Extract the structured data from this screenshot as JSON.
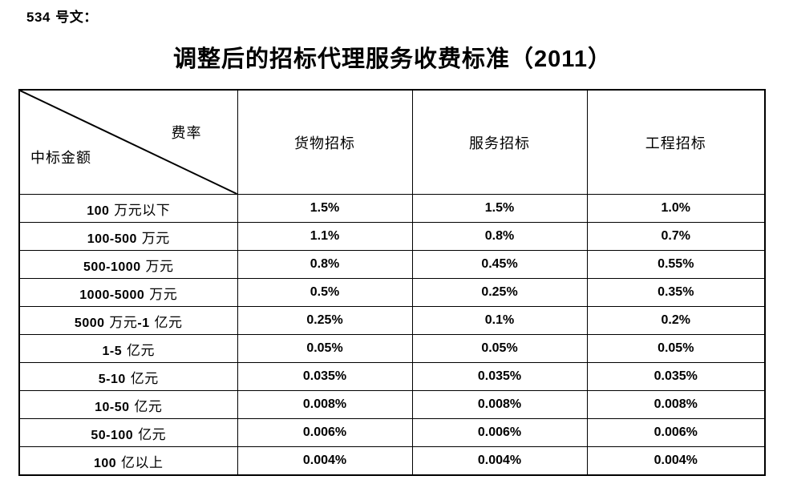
{
  "doc": {
    "doc_number": "534 号文：",
    "title": "调整后的招标代理服务收费标准（2011）"
  },
  "table": {
    "corner": {
      "top_right_label": "费率",
      "bottom_left_label": "中标金额"
    },
    "columns": [
      "货物招标",
      "服务招标",
      "工程招标"
    ],
    "rows": [
      {
        "label": "100 万元以下",
        "values": [
          "1.5%",
          "1.5%",
          "1.0%"
        ]
      },
      {
        "label": "100-500 万元",
        "values": [
          "1.1%",
          "0.8%",
          "0.7%"
        ]
      },
      {
        "label": "500-1000 万元",
        "values": [
          "0.8%",
          "0.45%",
          "0.55%"
        ]
      },
      {
        "label": "1000-5000 万元",
        "values": [
          "0.5%",
          "0.25%",
          "0.35%"
        ]
      },
      {
        "label": "5000 万元-1 亿元",
        "values": [
          "0.25%",
          "0.1%",
          "0.2%"
        ]
      },
      {
        "label": "1-5 亿元",
        "values": [
          "0.05%",
          "0.05%",
          "0.05%"
        ]
      },
      {
        "label": "5-10 亿元",
        "values": [
          "0.035%",
          "0.035%",
          "0.035%"
        ]
      },
      {
        "label": "10-50 亿元",
        "values": [
          "0.008%",
          "0.008%",
          "0.008%"
        ]
      },
      {
        "label": "50-100 亿元",
        "values": [
          "0.006%",
          "0.006%",
          "0.006%"
        ]
      },
      {
        "label": "100 亿以上",
        "values": [
          "0.004%",
          "0.004%",
          "0.004%"
        ]
      }
    ],
    "colors": {
      "border": "#000000",
      "text": "#000000",
      "background": "#ffffff"
    }
  }
}
